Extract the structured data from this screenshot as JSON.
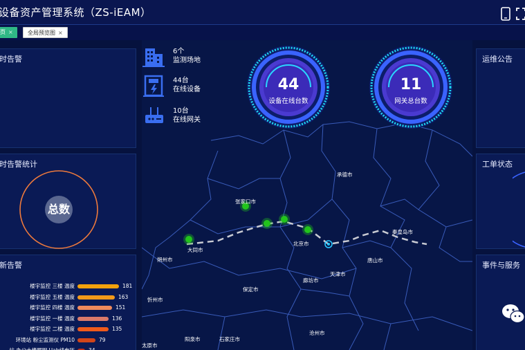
{
  "header": {
    "title": "设备资产管理系统（ZS-iEAM）"
  },
  "tabs": [
    {
      "label": "页",
      "active": true
    },
    {
      "label": "全局预览图",
      "active": false
    }
  ],
  "left_panels": {
    "panel1_title": "时告警",
    "panel2_title": "时告警统计",
    "donut_label": "总数",
    "panel3_title": "新告警"
  },
  "right_panels": {
    "panel1_title": "运维公告",
    "panel2_title": "工单状态",
    "panel3_title": "事件与服务"
  },
  "stats": [
    {
      "value": "6个",
      "label": "监测场地",
      "icon": "building-icon"
    },
    {
      "value": "44台",
      "label": "在线设备",
      "icon": "power-cabinet-icon"
    },
    {
      "value": "10台",
      "label": "在线网关",
      "icon": "router-icon"
    }
  ],
  "gauges": [
    {
      "value": "44",
      "label": "设备在线台数"
    },
    {
      "value": "11",
      "label": "网关总台数"
    }
  ],
  "map_cities": [
    "承德市",
    "张家口市",
    "秦皇岛市",
    "北京市",
    "大同市",
    "朔州市",
    "唐山市",
    "廊坊市",
    "天津市",
    "保定市",
    "忻州市",
    "阳泉市",
    "石家庄市",
    "沧州市",
    "太原市"
  ],
  "alarms": [
    {
      "label": "楼宇监控 三楼 温度",
      "value": 181,
      "color": "#f2a20c"
    },
    {
      "label": "楼宇监控 五楼 温度",
      "value": 163,
      "color": "#f39a1a"
    },
    {
      "label": "楼宇监控 四楼 温度",
      "value": 151,
      "color": "#f08a5c"
    },
    {
      "label": "楼宇监控 一楼 温度",
      "value": 136,
      "color": "#d97a6a"
    },
    {
      "label": "楼宇监控 二楼 温度",
      "value": 135,
      "color": "#ef5a1c"
    },
    {
      "label": "环境站 粉尘监测仪 PM10",
      "value": 79,
      "color": "#d0451a"
    },
    {
      "label": "站 办公大楼照明 Uab线电压",
      "value": 34,
      "color": "#c0301a"
    }
  ],
  "colors": {
    "accent": "#2fb886",
    "panel": "#0a1a55",
    "gauge": "#3a63ff",
    "donut_ring": "#ef7a3c",
    "map_point": "#22c41c"
  }
}
